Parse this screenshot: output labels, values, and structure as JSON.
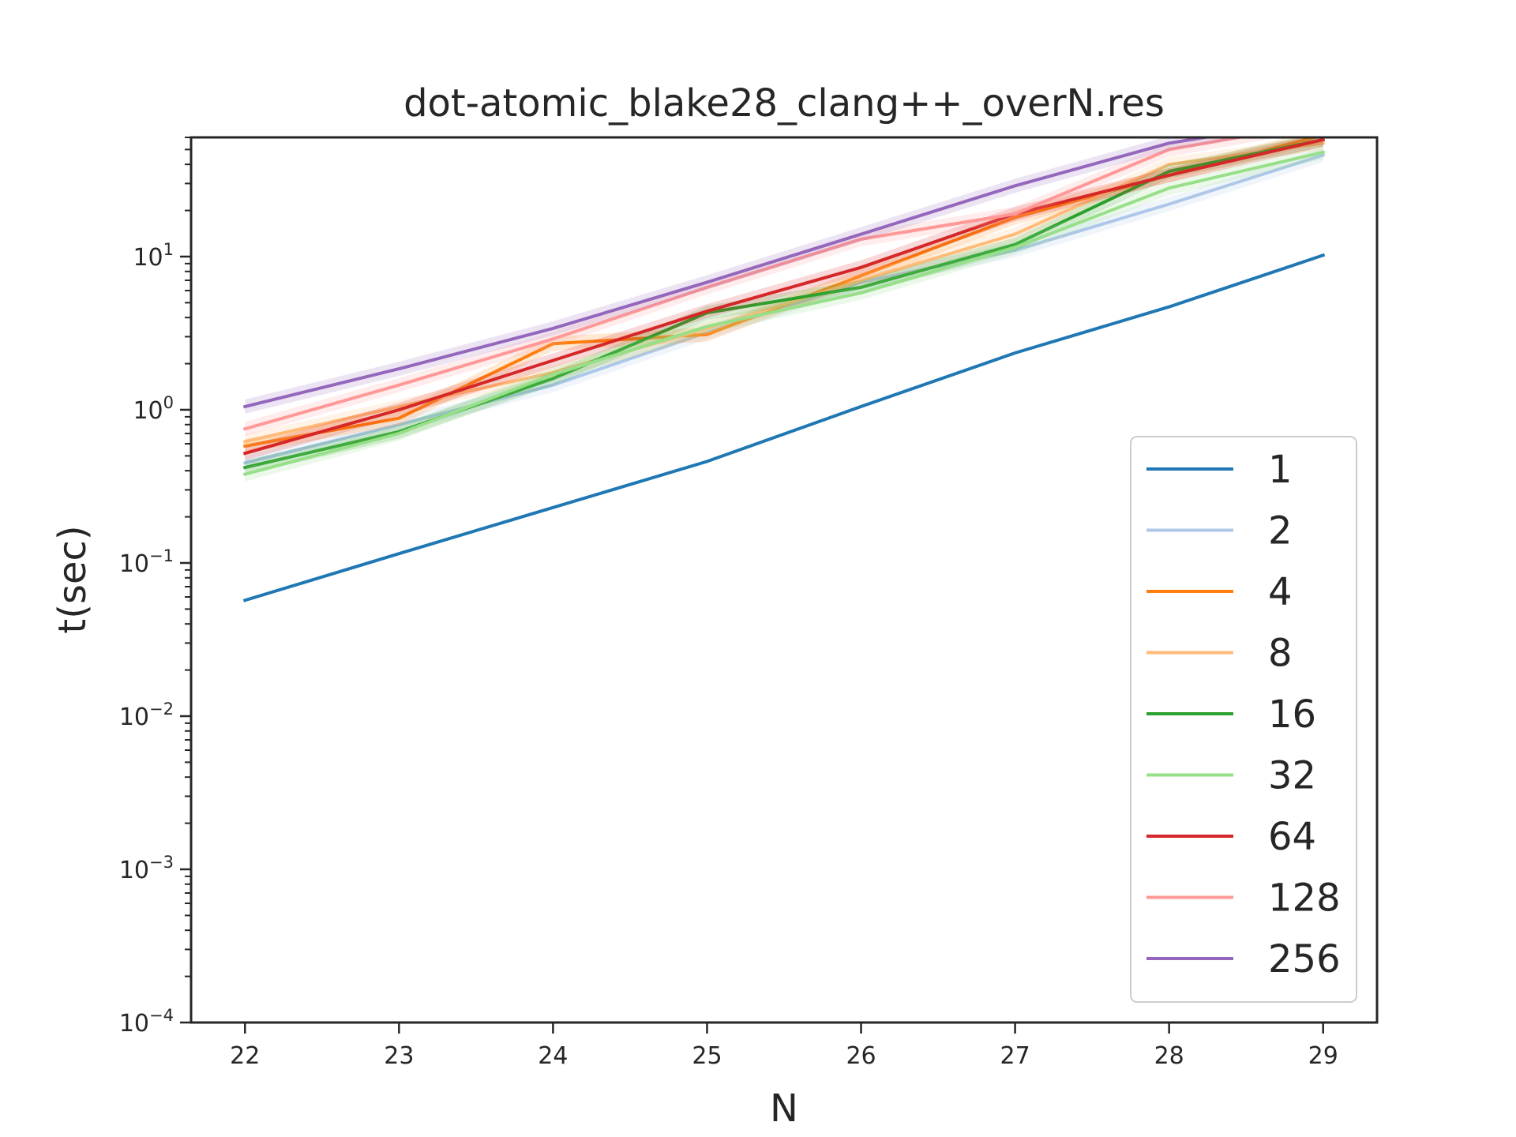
{
  "chart_data": {
    "type": "line",
    "title": "dot-atomic_blake28_clang++_overN.res",
    "xlabel": "N",
    "ylabel": "t(sec)",
    "yscale": "log",
    "xlim": [
      21.65,
      29.35
    ],
    "ylim": [
      0.0001,
      60
    ],
    "x": [
      22,
      23,
      24,
      25,
      26,
      27,
      28,
      29
    ],
    "x_ticks": [
      "22",
      "23",
      "24",
      "25",
      "26",
      "27",
      "28",
      "29"
    ],
    "y_ticks": [
      {
        "base": "10",
        "exp": "−4",
        "value": 0.0001
      },
      {
        "base": "10",
        "exp": "−3",
        "value": 0.001
      },
      {
        "base": "10",
        "exp": "−2",
        "value": 0.01
      },
      {
        "base": "10",
        "exp": "−1",
        "value": 0.1
      },
      {
        "base": "10",
        "exp": "0",
        "value": 1
      },
      {
        "base": "10",
        "exp": "1",
        "value": 10
      }
    ],
    "legend_position": "lower right",
    "series": [
      {
        "name": "1",
        "color": "#1f77b4",
        "values": [
          0.057,
          0.115,
          0.23,
          0.46,
          1.05,
          2.35,
          4.7,
          10.2
        ]
      },
      {
        "name": "2",
        "color": "#aec7e8",
        "values": [
          0.45,
          0.8,
          1.45,
          3.2,
          6.8,
          11.0,
          22.0,
          46.0
        ]
      },
      {
        "name": "4",
        "color": "#ff7f0e",
        "values": [
          0.58,
          0.88,
          2.7,
          3.1,
          7.5,
          18.0,
          34.0,
          62.0
        ]
      },
      {
        "name": "8",
        "color": "#ffbb78",
        "values": [
          0.62,
          1.05,
          1.75,
          3.4,
          7.0,
          14.0,
          40.0,
          55.0
        ]
      },
      {
        "name": "16",
        "color": "#2ca02c",
        "values": [
          0.42,
          0.72,
          1.6,
          4.3,
          6.3,
          12.0,
          36.0,
          58.0
        ]
      },
      {
        "name": "32",
        "color": "#98df8a",
        "values": [
          0.38,
          0.7,
          1.7,
          3.5,
          5.8,
          11.5,
          28.0,
          48.0
        ]
      },
      {
        "name": "64",
        "color": "#d62728",
        "values": [
          0.52,
          1.0,
          2.1,
          4.4,
          8.5,
          19.0,
          34.0,
          58.0
        ]
      },
      {
        "name": "128",
        "color": "#ff9896",
        "values": [
          0.75,
          1.45,
          2.9,
          6.3,
          13.0,
          19.0,
          50.0,
          75.0
        ]
      },
      {
        "name": "256",
        "color": "#9467bd",
        "values": [
          1.05,
          1.85,
          3.4,
          6.8,
          14.0,
          29.0,
          55.0,
          80.0
        ]
      }
    ]
  }
}
